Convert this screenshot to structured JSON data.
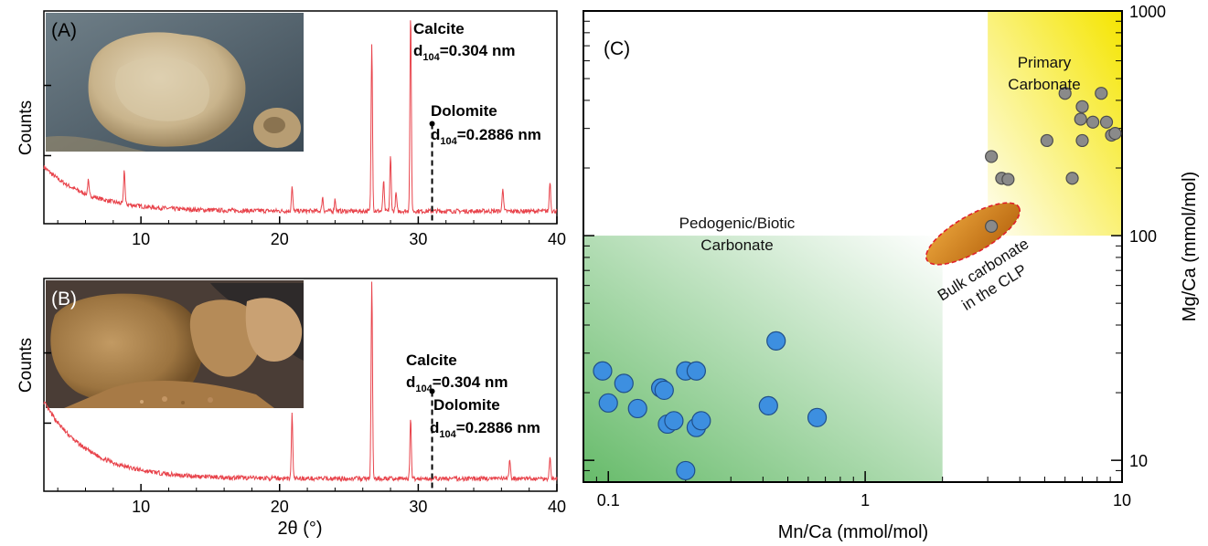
{
  "chart_data": [
    {
      "panel": "(A)",
      "type": "line",
      "xlabel": "",
      "ylabel": "Counts",
      "xlim": [
        3,
        40
      ],
      "xticks": [
        "10",
        "20",
        "30",
        "40"
      ],
      "line_color": "#e8434b",
      "peaks": [
        {
          "x": 6.2,
          "h": 0.07
        },
        {
          "x": 8.8,
          "h": 0.17
        },
        {
          "x": 20.9,
          "h": 0.12
        },
        {
          "x": 23.1,
          "h": 0.07
        },
        {
          "x": 24.0,
          "h": 0.06
        },
        {
          "x": 26.65,
          "h": 0.84
        },
        {
          "x": 27.5,
          "h": 0.15
        },
        {
          "x": 28.0,
          "h": 0.27
        },
        {
          "x": 28.4,
          "h": 0.09
        },
        {
          "x": 29.45,
          "h": 0.98
        },
        {
          "x": 36.1,
          "h": 0.12
        },
        {
          "x": 39.5,
          "h": 0.15
        }
      ],
      "annotations": [
        {
          "name": "Calcite",
          "d_label": "d104=0.304 nm",
          "d_main": "d",
          "d_sub": "104",
          "d_rest": "=0.304 nm"
        },
        {
          "name": "Dolomite",
          "d_label": "d104=0.2886 nm",
          "d_main": "d",
          "d_sub": "104",
          "d_rest": "=0.2886 nm",
          "x": 31.0
        }
      ]
    },
    {
      "panel": "(B)",
      "type": "line",
      "xlabel": "2θ (°)",
      "ylabel": "Counts",
      "xlim": [
        3,
        40
      ],
      "xticks": [
        "10",
        "20",
        "30",
        "40"
      ],
      "line_color": "#e8434b",
      "peaks": [
        {
          "x": 20.9,
          "h": 0.32
        },
        {
          "x": 26.65,
          "h": 0.98
        },
        {
          "x": 29.45,
          "h": 0.3
        },
        {
          "x": 36.6,
          "h": 0.1
        },
        {
          "x": 39.5,
          "h": 0.11
        }
      ],
      "annotations": [
        {
          "name": "Calcite",
          "d_label": "d104=0.304 nm",
          "d_main": "d",
          "d_sub": "104",
          "d_rest": "=0.304 nm"
        },
        {
          "name": "Dolomite",
          "d_label": "d104=0.2886 nm",
          "d_main": "d",
          "d_sub": "104",
          "d_rest": "=0.2886 nm",
          "x": 31.0
        }
      ]
    },
    {
      "panel": "(C)",
      "type": "scatter",
      "xlabel": "Mn/Ca  (mmol/mol)",
      "ylabel": "Mg/Ca  (mmol/mol)",
      "xscale": "log",
      "yscale": "log",
      "xlim": [
        0.08,
        10
      ],
      "ylim": [
        8,
        1000
      ],
      "xticks": [
        "0.1",
        "1",
        "10"
      ],
      "yticks": [
        "10",
        "100",
        "1000"
      ],
      "regions": [
        {
          "label_lines": [
            "Pedogenic/Biotic",
            "Carbonate"
          ],
          "x_range": [
            0.08,
            2
          ],
          "y_range": [
            8,
            100
          ],
          "color": "#4caf50"
        },
        {
          "label_lines": [
            "Primary",
            "Carbonate"
          ],
          "x_range": [
            3,
            10
          ],
          "y_range": [
            100,
            1000
          ],
          "color": "#f5e500"
        }
      ],
      "bulk_label_lines": [
        "Bulk carbonate",
        "in the CLP"
      ],
      "series": [
        {
          "color": "#3d8fe0",
          "points": [
            [
              0.095,
              25
            ],
            [
              0.1,
              18
            ],
            [
              0.115,
              22
            ],
            [
              0.13,
              17
            ],
            [
              0.16,
              21
            ],
            [
              0.165,
              20.5
            ],
            [
              0.17,
              14.5
            ],
            [
              0.18,
              15
            ],
            [
              0.2,
              25
            ],
            [
              0.2,
              9
            ],
            [
              0.22,
              14
            ],
            [
              0.22,
              25
            ],
            [
              0.23,
              15
            ],
            [
              0.42,
              17.5
            ],
            [
              0.45,
              34
            ],
            [
              0.65,
              15.5
            ]
          ]
        },
        {
          "color": "#8a8a8a",
          "points": [
            [
              3.1,
              110
            ],
            [
              3.1,
              225
            ],
            [
              3.4,
              180
            ],
            [
              3.6,
              178
            ],
            [
              5.1,
              265
            ],
            [
              6.0,
              430
            ],
            [
              6.4,
              180
            ],
            [
              6.9,
              330
            ],
            [
              7.0,
              375
            ],
            [
              7.0,
              265
            ],
            [
              7.7,
              320
            ],
            [
              8.3,
              430
            ],
            [
              8.7,
              320
            ],
            [
              9.1,
              280
            ],
            [
              9.4,
              285
            ]
          ]
        }
      ]
    }
  ]
}
